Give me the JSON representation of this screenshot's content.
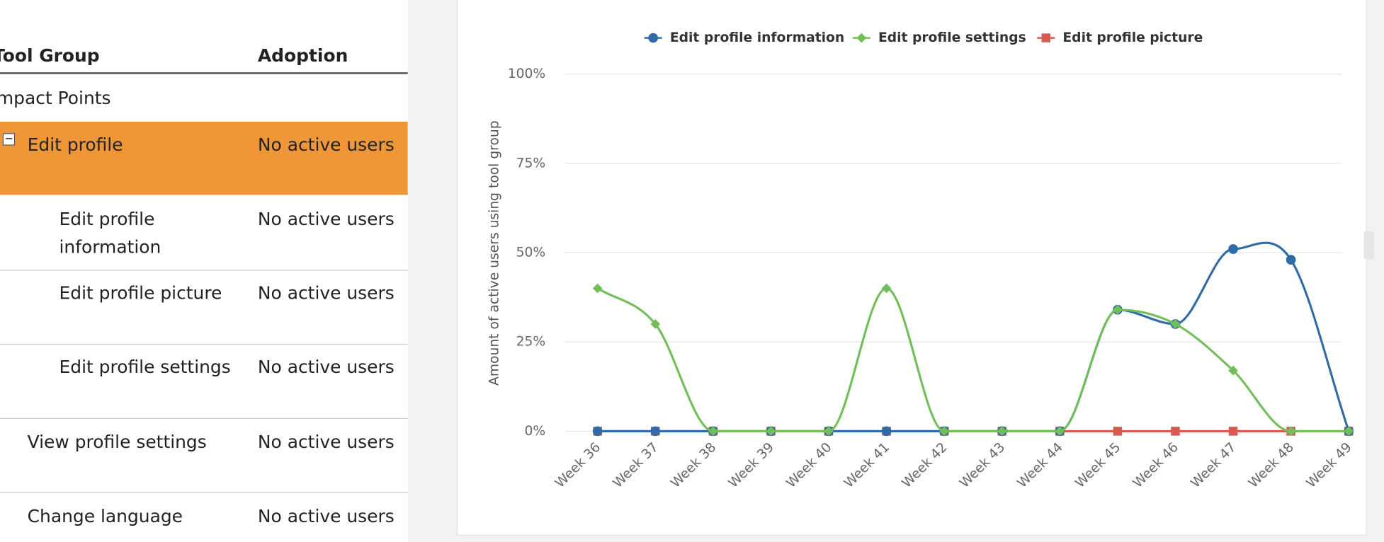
{
  "table": {
    "columns": [
      "Tool Group",
      "Adoption"
    ],
    "rows": [
      {
        "tool_group": "Impact Points"
      },
      {
        "tool_group": "Edit profile",
        "adoption": "No active users"
      },
      {
        "tool_group": "Edit profile information",
        "adoption": "No active users"
      },
      {
        "tool_group": "Edit profile picture",
        "adoption": "No active users"
      },
      {
        "tool_group": "Edit profile settings",
        "adoption": "No active users"
      },
      {
        "tool_group": "View profile settings",
        "adoption": "No active users"
      },
      {
        "tool_group": "Change language",
        "adoption": "No active users"
      }
    ]
  },
  "chart_data": {
    "type": "line",
    "smooth": true,
    "y_axis_label": "Amount of active users using tool group",
    "categories": [
      "Week 36",
      "Week 37",
      "Week 38",
      "Week 39",
      "Week 40",
      "Week 41",
      "Week 42",
      "Week 43",
      "Week 44",
      "Week 45",
      "Week 46",
      "Week 47",
      "Week 48",
      "Week 49"
    ],
    "series": [
      {
        "name": "Edit profile information",
        "color": "#2f6ba7",
        "marker": "circle",
        "values": [
          0,
          0,
          0,
          0,
          0,
          0,
          0,
          0,
          0,
          34,
          30,
          51,
          48,
          0
        ]
      },
      {
        "name": "Edit profile settings",
        "color": "#72bf5a",
        "marker": "diamond",
        "values": [
          40,
          30,
          0,
          0,
          0,
          40,
          0,
          0,
          0,
          34,
          30,
          17,
          0,
          0
        ]
      },
      {
        "name": "Edit profile picture",
        "color": "#d65a4f",
        "marker": "square",
        "values": [
          0,
          0,
          0,
          0,
          0,
          0,
          0,
          0,
          0,
          0,
          0,
          0,
          0,
          0
        ]
      }
    ],
    "ylim": [
      0,
      100
    ],
    "yticks": [
      {
        "value": 0,
        "label": "0%"
      },
      {
        "value": 25,
        "label": "25%"
      },
      {
        "value": 50,
        "label": "50%"
      },
      {
        "value": 75,
        "label": "75%"
      },
      {
        "value": 100,
        "label": "100%"
      }
    ],
    "grid": true,
    "legend": "top"
  }
}
